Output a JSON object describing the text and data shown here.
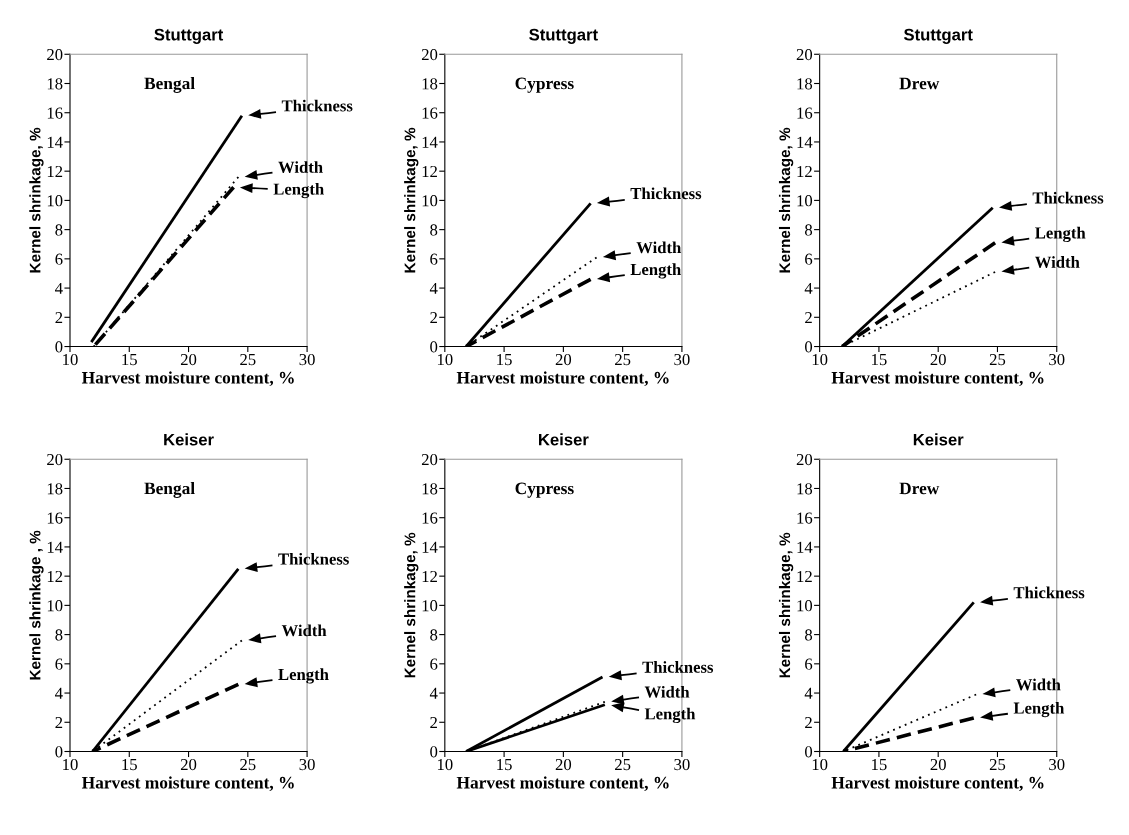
{
  "chart_data": [
    {
      "type": "line",
      "title": "Stuttgart",
      "annotations": [
        "Bengal"
      ],
      "xlabel": "Harvest moisture content, %",
      "ylabel": "Kernel shrinkage, %",
      "xlim": [
        10,
        30
      ],
      "ylim": [
        0,
        20
      ],
      "xticks": [
        10,
        15,
        20,
        25,
        30
      ],
      "yticks": [
        0,
        2,
        4,
        6,
        8,
        10,
        12,
        14,
        16,
        18,
        20
      ],
      "grid": false,
      "legend": "right",
      "series": [
        {
          "name": "Thickness",
          "color": "#000000",
          "line_style": "solid",
          "x": [
            11.8,
            24.5
          ],
          "values": [
            0.3,
            15.8
          ]
        },
        {
          "name": "Width",
          "color": "#000000",
          "line_style": "dotted",
          "x": [
            12,
            24.2
          ],
          "values": [
            0,
            11.6
          ]
        },
        {
          "name": "Length",
          "color": "#000000",
          "line_style": "dashed",
          "x": [
            12,
            23.8
          ],
          "values": [
            0,
            10.9
          ]
        }
      ]
    },
    {
      "type": "line",
      "title": "Stuttgart",
      "annotations": [
        "Cypress"
      ],
      "xlabel": "Harvest moisture content, %",
      "ylabel": "Kernel shrinkage, %",
      "xlim": [
        10,
        30
      ],
      "ylim": [
        0,
        20
      ],
      "xticks": [
        10,
        15,
        20,
        25,
        30
      ],
      "yticks": [
        0,
        2,
        4,
        6,
        8,
        10,
        12,
        14,
        16,
        18,
        20
      ],
      "grid": false,
      "legend": "right",
      "series": [
        {
          "name": "Thickness",
          "color": "#000000",
          "line_style": "solid",
          "x": [
            11.8,
            22.3
          ],
          "values": [
            0,
            9.8
          ]
        },
        {
          "name": "Width",
          "color": "#000000",
          "line_style": "dotted",
          "x": [
            11.8,
            22.8
          ],
          "values": [
            0,
            6.1
          ]
        },
        {
          "name": "Length",
          "color": "#000000",
          "line_style": "dashed",
          "x": [
            11.8,
            22.3
          ],
          "values": [
            0,
            4.6
          ]
        }
      ]
    },
    {
      "type": "line",
      "title": "Stuttgart",
      "annotations": [
        "Drew"
      ],
      "xlabel": "Harvest moisture content, %",
      "ylabel": "Kernel shrinkage, %",
      "xlim": [
        10,
        30
      ],
      "ylim": [
        0,
        20
      ],
      "xticks": [
        10,
        15,
        20,
        25,
        30
      ],
      "yticks": [
        0,
        2,
        4,
        6,
        8,
        10,
        12,
        14,
        16,
        18,
        20
      ],
      "grid": false,
      "legend": "right",
      "series": [
        {
          "name": "Thickness",
          "color": "#000000",
          "line_style": "solid",
          "x": [
            11.9,
            24.6
          ],
          "values": [
            0,
            9.5
          ]
        },
        {
          "name": "Length",
          "color": "#000000",
          "line_style": "dashed",
          "x": [
            11.9,
            24.8
          ],
          "values": [
            0,
            7.1
          ]
        },
        {
          "name": "Width",
          "color": "#000000",
          "line_style": "dotted",
          "x": [
            11.9,
            24.8
          ],
          "values": [
            0,
            5.1
          ]
        }
      ]
    },
    {
      "type": "line",
      "title": "Keiser",
      "annotations": [
        "Bengal"
      ],
      "xlabel": "Harvest moisture content, %",
      "ylabel": "Kernel shrinkage , %",
      "xlim": [
        10,
        30
      ],
      "ylim": [
        0,
        20
      ],
      "xticks": [
        10,
        15,
        20,
        25,
        30
      ],
      "yticks": [
        0,
        2,
        4,
        6,
        8,
        10,
        12,
        14,
        16,
        18,
        20
      ],
      "grid": false,
      "legend": "right",
      "series": [
        {
          "name": "Thickness",
          "color": "#000000",
          "line_style": "solid",
          "x": [
            11.9,
            24.2
          ],
          "values": [
            0,
            12.5
          ]
        },
        {
          "name": "Width",
          "color": "#000000",
          "line_style": "dotted",
          "x": [
            11.9,
            24.5
          ],
          "values": [
            0,
            7.6
          ]
        },
        {
          "name": "Length",
          "color": "#000000",
          "line_style": "dashed",
          "x": [
            11.9,
            24.2
          ],
          "values": [
            0,
            4.6
          ]
        }
      ]
    },
    {
      "type": "line",
      "title": "Keiser",
      "annotations": [
        "Cypress"
      ],
      "xlabel": "Harvest moisture content, %",
      "ylabel": "Kernel shrinkage, %",
      "xlim": [
        10,
        30
      ],
      "ylim": [
        0,
        20
      ],
      "xticks": [
        10,
        15,
        20,
        25,
        30
      ],
      "yticks": [
        0,
        2,
        4,
        6,
        8,
        10,
        12,
        14,
        16,
        18,
        20
      ],
      "grid": false,
      "legend": "right",
      "series": [
        {
          "name": "Thickness",
          "color": "#000000",
          "line_style": "solid",
          "x": [
            11.8,
            23.3
          ],
          "values": [
            0,
            5.1
          ]
        },
        {
          "name": "Width",
          "color": "#000000",
          "line_style": "dotted",
          "x": [
            11.8,
            23.5
          ],
          "values": [
            0,
            3.4
          ]
        },
        {
          "name": "Length",
          "color": "#000000",
          "line_style": "solid",
          "x": [
            11.8,
            23.5
          ],
          "values": [
            0,
            3.2
          ]
        }
      ]
    },
    {
      "type": "line",
      "title": "Keiser",
      "annotations": [
        "Drew"
      ],
      "xlabel": "Harvest moisture content, %",
      "ylabel": "Kernel shrinkage, %",
      "xlim": [
        10,
        30
      ],
      "ylim": [
        0,
        20
      ],
      "xticks": [
        10,
        15,
        20,
        25,
        30
      ],
      "yticks": [
        0,
        2,
        4,
        6,
        8,
        10,
        12,
        14,
        16,
        18,
        20
      ],
      "grid": false,
      "legend": "right",
      "series": [
        {
          "name": "Thickness",
          "color": "#000000",
          "line_style": "solid",
          "x": [
            12,
            23
          ],
          "values": [
            0,
            10.2
          ]
        },
        {
          "name": "Width",
          "color": "#000000",
          "line_style": "dotted",
          "x": [
            12,
            23.2
          ],
          "values": [
            0,
            3.9
          ]
        },
        {
          "name": "Length",
          "color": "#000000",
          "line_style": "dashed",
          "x": [
            12,
            23
          ],
          "values": [
            0,
            2.3
          ]
        }
      ]
    }
  ]
}
